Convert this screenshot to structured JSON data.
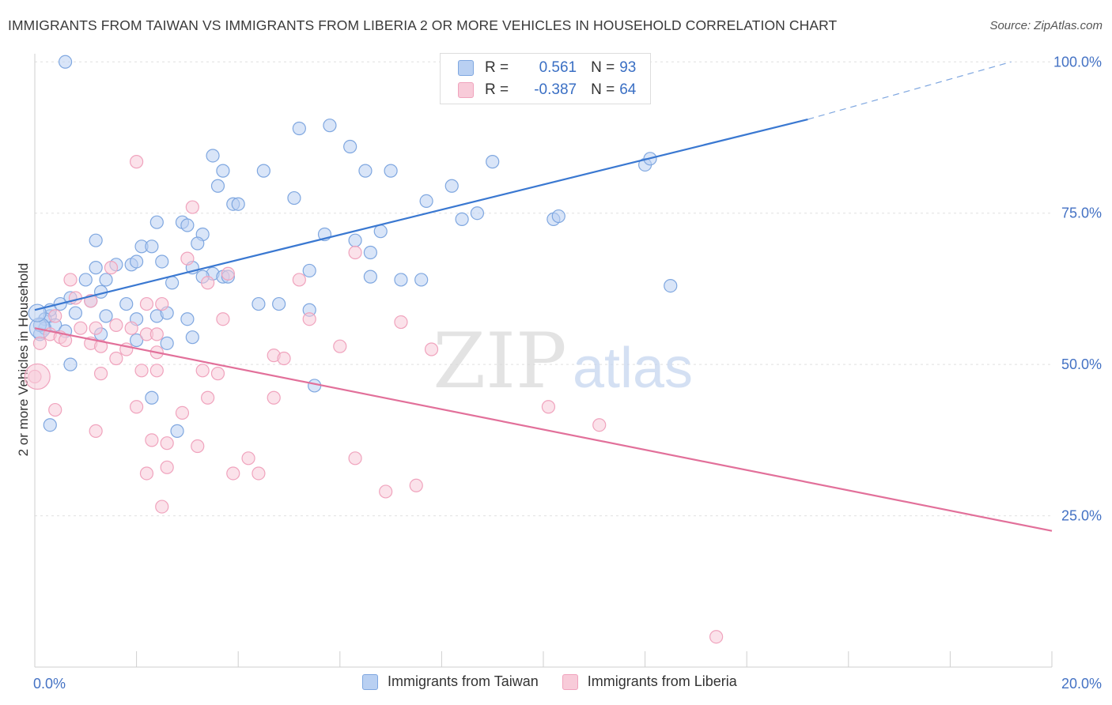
{
  "header": {
    "title": "IMMIGRANTS FROM TAIWAN VS IMMIGRANTS FROM LIBERIA 2 OR MORE VEHICLES IN HOUSEHOLD CORRELATION CHART",
    "source": "Source: ZipAtlas.com"
  },
  "watermark": {
    "zip": "ZIP",
    "atlas": "atlas"
  },
  "legend": {
    "taiwan": {
      "r_label": "R =",
      "r_value": "0.561",
      "n_label": "N =",
      "n_value": "93"
    },
    "liberia": {
      "r_label": "R =",
      "r_value": "-0.387",
      "n_label": "N =",
      "n_value": "64"
    }
  },
  "chart_data": {
    "type": "scatter",
    "title": "IMMIGRANTS FROM TAIWAN VS IMMIGRANTS FROM LIBERIA 2 OR MORE VEHICLES IN HOUSEHOLD CORRELATION CHART",
    "xlabel": "",
    "ylabel": "2 or more Vehicles in Household",
    "xlim": [
      0,
      20
    ],
    "ylim": [
      0,
      105
    ],
    "x_ticks": [
      {
        "value": 0,
        "label": "0.0%"
      },
      {
        "value": 20,
        "label": "20.0%"
      }
    ],
    "y_ticks": [
      {
        "value": 25,
        "label": "25.0%"
      },
      {
        "value": 50,
        "label": "50.0%"
      },
      {
        "value": 75,
        "label": "75.0%"
      },
      {
        "value": 100,
        "label": "100.0%"
      }
    ],
    "grid": true,
    "legend_position": "top-center",
    "series": [
      {
        "name": "Immigrants from Taiwan",
        "color": "#7fa7e0",
        "fill": "#b9d0f2",
        "trend": {
          "x": [
            0,
            15.2
          ],
          "y": [
            59,
            90.5
          ],
          "dashed_to": [
            19.2,
            100
          ]
        },
        "points": [
          [
            0.6,
            100
          ],
          [
            5.2,
            89
          ],
          [
            5.8,
            89.5
          ],
          [
            6.2,
            86
          ],
          [
            4.5,
            82
          ],
          [
            3.5,
            84.5
          ],
          [
            7,
            82
          ],
          [
            8.2,
            79.5
          ],
          [
            9,
            83.5
          ],
          [
            12,
            83
          ],
          [
            12.1,
            84
          ],
          [
            6.5,
            82
          ],
          [
            3.6,
            79.5
          ],
          [
            3.7,
            82
          ],
          [
            3.9,
            76.5
          ],
          [
            4,
            76.5
          ],
          [
            5.1,
            77.5
          ],
          [
            5.7,
            71.5
          ],
          [
            6.3,
            70.5
          ],
          [
            6.8,
            72
          ],
          [
            7.7,
            77
          ],
          [
            8.7,
            75
          ],
          [
            8.4,
            74
          ],
          [
            10.2,
            74
          ],
          [
            10.3,
            74.5
          ],
          [
            2.4,
            73.5
          ],
          [
            2.9,
            73.5
          ],
          [
            3,
            73
          ],
          [
            3.3,
            71.5
          ],
          [
            3.2,
            70
          ],
          [
            1.2,
            70.5
          ],
          [
            2.1,
            69.5
          ],
          [
            2.3,
            69.5
          ],
          [
            6.6,
            68.5
          ],
          [
            1.2,
            66
          ],
          [
            1.6,
            66.5
          ],
          [
            1.9,
            66.5
          ],
          [
            2,
            67
          ],
          [
            2.5,
            67
          ],
          [
            3.1,
            66
          ],
          [
            3.5,
            65
          ],
          [
            3.7,
            64.5
          ],
          [
            3.3,
            64.5
          ],
          [
            3.8,
            64.5
          ],
          [
            5.4,
            65.5
          ],
          [
            6.6,
            64.5
          ],
          [
            7.2,
            64
          ],
          [
            7.6,
            64
          ],
          [
            1,
            64
          ],
          [
            1.4,
            64
          ],
          [
            2.7,
            63.5
          ],
          [
            12.5,
            63
          ],
          [
            1.3,
            62
          ],
          [
            0.7,
            61
          ],
          [
            0.5,
            60
          ],
          [
            1.1,
            60.5
          ],
          [
            0.8,
            58.5
          ],
          [
            1.8,
            60
          ],
          [
            4.4,
            60
          ],
          [
            4.8,
            60
          ],
          [
            5.4,
            59
          ],
          [
            0.3,
            58
          ],
          [
            0.3,
            59
          ],
          [
            0.2,
            57.5
          ],
          [
            1.4,
            58
          ],
          [
            2,
            57.5
          ],
          [
            2.4,
            58
          ],
          [
            2.6,
            58.5
          ],
          [
            3,
            57.5
          ],
          [
            0.1,
            55
          ],
          [
            0.2,
            56
          ],
          [
            0.4,
            56.5
          ],
          [
            0.1,
            56.5
          ],
          [
            0.6,
            55.5
          ],
          [
            1.3,
            55
          ],
          [
            2,
            54
          ],
          [
            2.6,
            53.5
          ],
          [
            3.1,
            54.5
          ],
          [
            0.7,
            50
          ],
          [
            5.5,
            46.5
          ],
          [
            2.3,
            44.5
          ],
          [
            0.3,
            40
          ],
          [
            2.8,
            39
          ]
        ]
      },
      {
        "name": "Immigrants from Liberia",
        "color": "#f0a3bd",
        "fill": "#f8cbd9",
        "trend": {
          "x": [
            0,
            20
          ],
          "y": [
            56,
            22.5
          ]
        },
        "points": [
          [
            2,
            83.5
          ],
          [
            3.1,
            76
          ],
          [
            3,
            67.5
          ],
          [
            3.8,
            65
          ],
          [
            3.4,
            63.5
          ],
          [
            5.2,
            64
          ],
          [
            6.3,
            68.5
          ],
          [
            1.5,
            66
          ],
          [
            0.7,
            64
          ],
          [
            0.8,
            61
          ],
          [
            1.1,
            60.5
          ],
          [
            2.2,
            60
          ],
          [
            2.5,
            60
          ],
          [
            3.7,
            57.5
          ],
          [
            5.4,
            57.5
          ],
          [
            7.2,
            57
          ],
          [
            0.4,
            58
          ],
          [
            0.9,
            56
          ],
          [
            1.2,
            56
          ],
          [
            1.6,
            56.5
          ],
          [
            1.9,
            56
          ],
          [
            2.2,
            55
          ],
          [
            2.4,
            55
          ],
          [
            0.3,
            55
          ],
          [
            0.5,
            54.5
          ],
          [
            0.6,
            54
          ],
          [
            0.1,
            53.5
          ],
          [
            1.1,
            53.5
          ],
          [
            1.3,
            53
          ],
          [
            1.8,
            52.5
          ],
          [
            2.4,
            52
          ],
          [
            4.7,
            51.5
          ],
          [
            4.9,
            51
          ],
          [
            6,
            53
          ],
          [
            7.8,
            52.5
          ],
          [
            1.6,
            51
          ],
          [
            2.1,
            49
          ],
          [
            2.4,
            49
          ],
          [
            3.3,
            49
          ],
          [
            3.6,
            48.5
          ],
          [
            1.3,
            48.5
          ],
          [
            0,
            48
          ],
          [
            3.4,
            44.5
          ],
          [
            4.7,
            44.5
          ],
          [
            2,
            43
          ],
          [
            2.9,
            42
          ],
          [
            0.4,
            42.5
          ],
          [
            10.1,
            43
          ],
          [
            1.2,
            39
          ],
          [
            2.3,
            37.5
          ],
          [
            2.6,
            37
          ],
          [
            3.2,
            36.5
          ],
          [
            6.3,
            34.5
          ],
          [
            4.2,
            34.5
          ],
          [
            2.6,
            33
          ],
          [
            2.2,
            32
          ],
          [
            3.9,
            32
          ],
          [
            4.4,
            32
          ],
          [
            6.9,
            29
          ],
          [
            7.5,
            30
          ],
          [
            11.1,
            40
          ],
          [
            2.5,
            26.5
          ],
          [
            13.4,
            5
          ]
        ]
      }
    ]
  },
  "bottom_legend": {
    "taiwan_label": "Immigrants from Taiwan",
    "liberia_label": "Immigrants from Liberia"
  }
}
